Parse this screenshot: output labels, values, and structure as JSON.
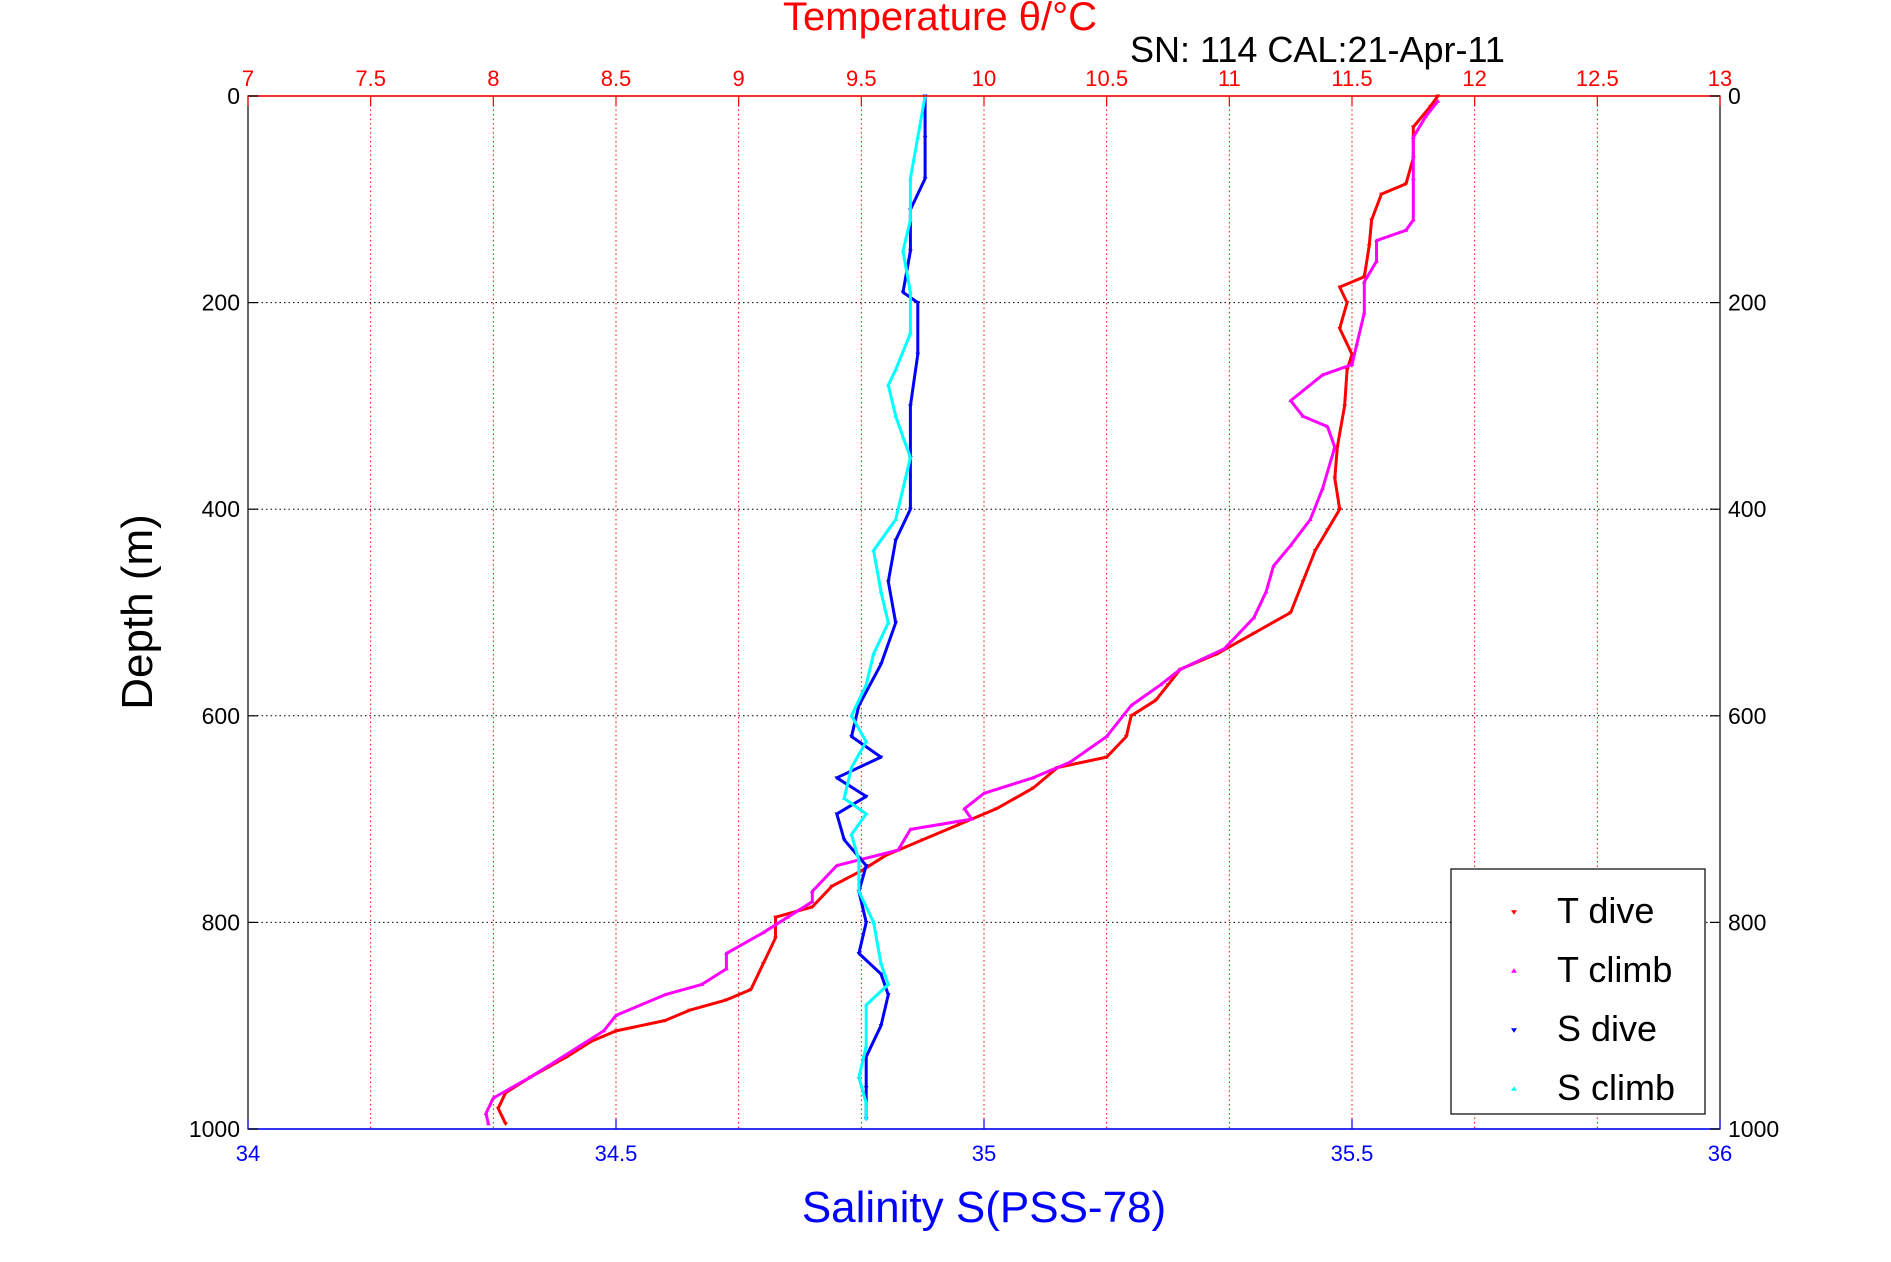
{
  "chart_data": {
    "type": "scatter",
    "title": "Temperature θ/°C",
    "subtitle": "SN: 114  CAL:21-Apr-11",
    "xlabel": "Salinity S(PSS-78)",
    "ylabel": "Depth (m)",
    "grid": true,
    "legend_placement": "bottom-right",
    "y_reversed": true,
    "ylim": [
      0,
      1000
    ],
    "yticks": [
      0,
      200,
      400,
      600,
      800,
      1000
    ],
    "salinity_axis": {
      "position": "bottom",
      "lim": [
        34,
        36
      ],
      "ticks": [
        "34",
        "34.5",
        "35",
        "35.5",
        "36"
      ],
      "color": "#0000ff"
    },
    "temperature_axis": {
      "position": "top",
      "lim": [
        7,
        13
      ],
      "ticks": [
        "7",
        "7.5",
        "8",
        "8.5",
        "9",
        "9.5",
        "10",
        "10.5",
        "11",
        "11.5",
        "12",
        "12.5",
        "13"
      ],
      "color": "#ff0000"
    },
    "series": [
      {
        "name": "T dive",
        "axis": "temperature",
        "color": "#ff0000",
        "marker": "down-triangle",
        "points": [
          [
            11.85,
            0
          ],
          [
            11.82,
            10
          ],
          [
            11.75,
            30
          ],
          [
            11.75,
            60
          ],
          [
            11.72,
            85
          ],
          [
            11.62,
            95
          ],
          [
            11.58,
            120
          ],
          [
            11.57,
            145
          ],
          [
            11.55,
            175
          ],
          [
            11.45,
            185
          ],
          [
            11.48,
            200
          ],
          [
            11.45,
            225
          ],
          [
            11.5,
            250
          ],
          [
            11.48,
            265
          ],
          [
            11.47,
            300
          ],
          [
            11.44,
            340
          ],
          [
            11.43,
            370
          ],
          [
            11.45,
            400
          ],
          [
            11.4,
            420
          ],
          [
            11.35,
            440
          ],
          [
            11.3,
            470
          ],
          [
            11.25,
            500
          ],
          [
            11.1,
            520
          ],
          [
            10.95,
            540
          ],
          [
            10.8,
            555
          ],
          [
            10.75,
            570
          ],
          [
            10.7,
            585
          ],
          [
            10.6,
            600
          ],
          [
            10.58,
            620
          ],
          [
            10.5,
            640
          ],
          [
            10.3,
            650
          ],
          [
            10.2,
            670
          ],
          [
            10.05,
            690
          ],
          [
            9.9,
            705
          ],
          [
            9.75,
            720
          ],
          [
            9.6,
            735
          ],
          [
            9.5,
            750
          ],
          [
            9.38,
            765
          ],
          [
            9.3,
            785
          ],
          [
            9.15,
            795
          ],
          [
            9.15,
            815
          ],
          [
            9.1,
            840
          ],
          [
            9.05,
            865
          ],
          [
            8.95,
            875
          ],
          [
            8.8,
            885
          ],
          [
            8.7,
            895
          ],
          [
            8.5,
            905
          ],
          [
            8.4,
            915
          ],
          [
            8.3,
            930
          ],
          [
            8.15,
            950
          ],
          [
            8.05,
            965
          ],
          [
            8.02,
            980
          ],
          [
            8.05,
            995
          ]
        ]
      },
      {
        "name": "T climb",
        "axis": "temperature",
        "color": "#ff00ff",
        "marker": "up-triangle",
        "points": [
          [
            11.85,
            5
          ],
          [
            11.8,
            20
          ],
          [
            11.75,
            40
          ],
          [
            11.75,
            80
          ],
          [
            11.75,
            120
          ],
          [
            11.72,
            130
          ],
          [
            11.6,
            140
          ],
          [
            11.6,
            160
          ],
          [
            11.55,
            180
          ],
          [
            11.55,
            210
          ],
          [
            11.52,
            240
          ],
          [
            11.5,
            260
          ],
          [
            11.38,
            270
          ],
          [
            11.25,
            295
          ],
          [
            11.3,
            310
          ],
          [
            11.4,
            320
          ],
          [
            11.43,
            340
          ],
          [
            11.38,
            380
          ],
          [
            11.33,
            410
          ],
          [
            11.25,
            435
          ],
          [
            11.18,
            455
          ],
          [
            11.15,
            480
          ],
          [
            11.1,
            505
          ],
          [
            10.98,
            535
          ],
          [
            10.8,
            555
          ],
          [
            10.72,
            570
          ],
          [
            10.6,
            590
          ],
          [
            10.5,
            620
          ],
          [
            10.35,
            645
          ],
          [
            10.2,
            660
          ],
          [
            10.0,
            675
          ],
          [
            9.92,
            690
          ],
          [
            9.95,
            700
          ],
          [
            9.7,
            710
          ],
          [
            9.65,
            730
          ],
          [
            9.4,
            745
          ],
          [
            9.3,
            770
          ],
          [
            9.3,
            780
          ],
          [
            9.2,
            795
          ],
          [
            9.1,
            810
          ],
          [
            8.95,
            830
          ],
          [
            8.95,
            845
          ],
          [
            8.85,
            860
          ],
          [
            8.7,
            870
          ],
          [
            8.5,
            890
          ],
          [
            8.45,
            905
          ],
          [
            8.35,
            920
          ],
          [
            8.25,
            935
          ],
          [
            8.15,
            950
          ],
          [
            8.0,
            970
          ],
          [
            7.97,
            985
          ],
          [
            7.98,
            995
          ]
        ]
      },
      {
        "name": "S dive",
        "axis": "salinity",
        "color": "#0000ff",
        "marker": "down-triangle",
        "points": [
          [
            34.92,
            0
          ],
          [
            34.92,
            40
          ],
          [
            34.92,
            80
          ],
          [
            34.9,
            110
          ],
          [
            34.9,
            150
          ],
          [
            34.89,
            190
          ],
          [
            34.91,
            200
          ],
          [
            34.91,
            250
          ],
          [
            34.9,
            300
          ],
          [
            34.9,
            350
          ],
          [
            34.9,
            400
          ],
          [
            34.88,
            430
          ],
          [
            34.87,
            470
          ],
          [
            34.88,
            510
          ],
          [
            34.86,
            550
          ],
          [
            34.83,
            590
          ],
          [
            34.82,
            620
          ],
          [
            34.86,
            640
          ],
          [
            34.8,
            660
          ],
          [
            34.84,
            678
          ],
          [
            34.8,
            695
          ],
          [
            34.81,
            720
          ],
          [
            34.84,
            745
          ],
          [
            34.83,
            770
          ],
          [
            34.84,
            800
          ],
          [
            34.83,
            830
          ],
          [
            34.86,
            850
          ],
          [
            34.87,
            870
          ],
          [
            34.86,
            900
          ],
          [
            34.84,
            930
          ],
          [
            34.84,
            960
          ],
          [
            34.84,
            990
          ]
        ]
      },
      {
        "name": "S climb",
        "axis": "salinity",
        "color": "#00ffff",
        "marker": "up-triangle",
        "points": [
          [
            34.92,
            0
          ],
          [
            34.91,
            40
          ],
          [
            34.9,
            80
          ],
          [
            34.9,
            120
          ],
          [
            34.89,
            150
          ],
          [
            34.9,
            190
          ],
          [
            34.9,
            230
          ],
          [
            34.88,
            265
          ],
          [
            34.87,
            280
          ],
          [
            34.88,
            310
          ],
          [
            34.89,
            330
          ],
          [
            34.9,
            350
          ],
          [
            34.88,
            410
          ],
          [
            34.85,
            440
          ],
          [
            34.86,
            480
          ],
          [
            34.87,
            510
          ],
          [
            34.85,
            540
          ],
          [
            34.84,
            570
          ],
          [
            34.82,
            600
          ],
          [
            34.84,
            625
          ],
          [
            34.82,
            650
          ],
          [
            34.81,
            680
          ],
          [
            34.84,
            695
          ],
          [
            34.82,
            715
          ],
          [
            34.83,
            740
          ],
          [
            34.83,
            770
          ],
          [
            34.85,
            800
          ],
          [
            34.86,
            840
          ],
          [
            34.87,
            860
          ],
          [
            34.84,
            880
          ],
          [
            34.84,
            920
          ],
          [
            34.83,
            950
          ],
          [
            34.84,
            975
          ],
          [
            34.84,
            990
          ]
        ]
      }
    ]
  }
}
